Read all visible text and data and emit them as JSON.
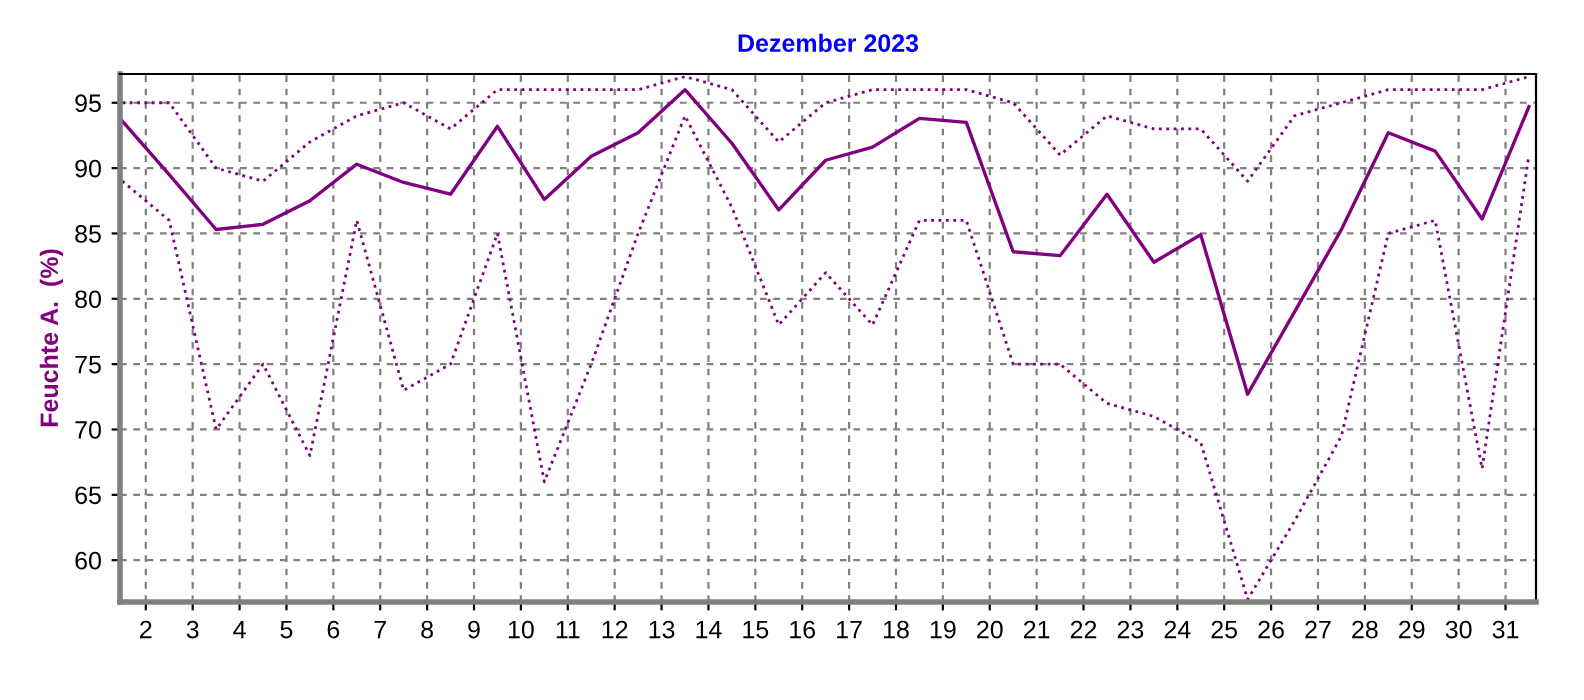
{
  "chart_data": {
    "type": "line",
    "title": "Dezember 2023",
    "ylabel": "Feuchte A.  (%)",
    "x": [
      1.5,
      2.5,
      3.5,
      4.5,
      5.5,
      6.5,
      7.5,
      8.5,
      9.5,
      10.5,
      11.5,
      12.5,
      13.5,
      14.5,
      15.5,
      16.5,
      17.5,
      18.5,
      19.5,
      20.5,
      21.5,
      22.5,
      23.5,
      24.5,
      25.5,
      26.5,
      27.5,
      28.5,
      29.5,
      30.5,
      31.5
    ],
    "series": [
      {
        "color": "#800080",
        "line_style": "dotted",
        "values": [
          95,
          95,
          90,
          89,
          92,
          94,
          95,
          93,
          96,
          96,
          96,
          96,
          97,
          96,
          92,
          95,
          96,
          96,
          96,
          95,
          91,
          94,
          93,
          93,
          89,
          94,
          95,
          96,
          96,
          96,
          97
        ]
      },
      {
        "color": "#800080",
        "line_style": "solid",
        "values": [
          93.6,
          89.5,
          85.3,
          85.7,
          87.5,
          90.3,
          88.9,
          88.0,
          93.2,
          87.6,
          90.9,
          92.7,
          96.0,
          91.9,
          86.8,
          90.6,
          91.6,
          93.8,
          93.5,
          83.6,
          83.3,
          88.0,
          82.8,
          84.9,
          72.7,
          79.0,
          85.3,
          92.7,
          91.3,
          86.1,
          94.7
        ]
      },
      {
        "color": "#800080",
        "line_style": "dotted",
        "values": [
          89,
          86,
          70,
          75,
          68,
          86,
          73,
          75,
          85,
          66,
          75,
          85,
          94,
          87,
          78,
          82,
          78,
          86,
          86,
          75,
          75,
          72,
          71,
          69,
          57,
          63,
          69.5,
          85,
          86,
          67,
          91
        ]
      }
    ],
    "xlim": [
      1.45,
      31.65
    ],
    "xticks": [
      2,
      3,
      4,
      5,
      6,
      7,
      8,
      9,
      10,
      11,
      12,
      13,
      14,
      15,
      16,
      17,
      18,
      19,
      20,
      21,
      22,
      23,
      24,
      25,
      26,
      27,
      28,
      29,
      30,
      31
    ],
    "ylim": [
      56.8,
      97.2
    ],
    "yticks": [
      60,
      65,
      70,
      75,
      80,
      85,
      90,
      95
    ],
    "grid": true,
    "marker": "none"
  }
}
